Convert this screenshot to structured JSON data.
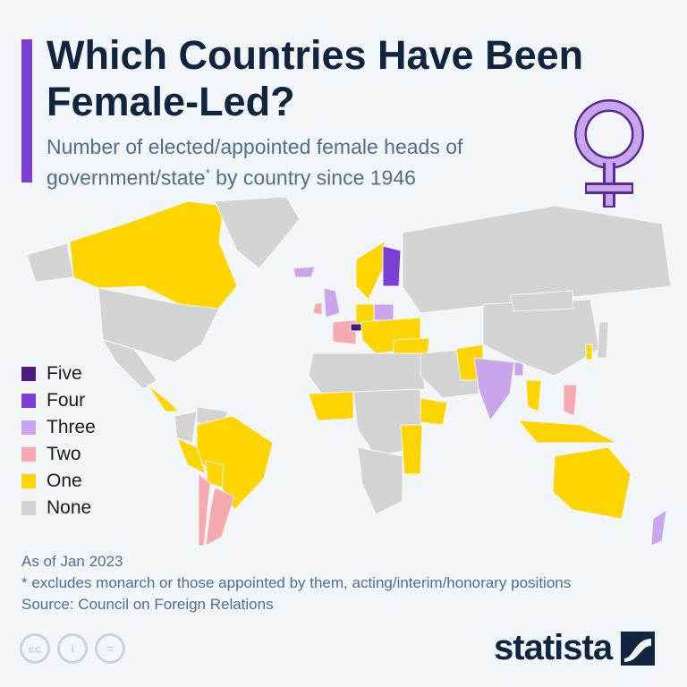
{
  "header": {
    "title": "Which Countries Have Been Female-Led?",
    "subtitle": "Number of elected/appointed female heads of government/state",
    "subtitle_mark": "*",
    "subtitle_end": " by country since 1946"
  },
  "legend": [
    {
      "label": "Five",
      "count": 5,
      "color": "#4b1a7e"
    },
    {
      "label": "Four",
      "count": 4,
      "color": "#7b3fd6"
    },
    {
      "label": "Three",
      "count": 3,
      "color": "#c9a6ec"
    },
    {
      "label": "Two",
      "count": 2,
      "color": "#f6aab0"
    },
    {
      "label": "One",
      "count": 1,
      "color": "#ffd500"
    },
    {
      "label": "None",
      "count": 0,
      "color": "#d3d3d3"
    }
  ],
  "map_regions": {
    "canada": 1,
    "usa": 0,
    "greenland": 0,
    "alaska": 0,
    "mexico": 0,
    "central_america": 1,
    "brazil": 1,
    "argentina": 2,
    "chile": 2,
    "peru": 1,
    "bolivia": 1,
    "colombia": 0,
    "venezuela": 0,
    "iceland": 3,
    "uk": 3,
    "ireland": 2,
    "france": 2,
    "germany": 1,
    "scandinavia": 1,
    "finland": 4,
    "switzerland": 5,
    "poland": 3,
    "eastern_europe": 1,
    "turkey": 1,
    "russia": 0,
    "north_africa": 0,
    "west_africa": 1,
    "central_africa": 0,
    "ethiopia": 1,
    "east_africa": 1,
    "southern_africa": 0,
    "middle_east": 0,
    "pakistan": 1,
    "india": 3,
    "bangladesh": 3,
    "china": 0,
    "mongolia": 0,
    "thailand": 1,
    "indonesia": 1,
    "philippines": 2,
    "australia": 1,
    "new_zealand": 3,
    "japan": 0,
    "korea": 1
  },
  "footer": {
    "as_of": "As of Jan 2023",
    "note": "* excludes monarch or those appointed by them, acting/interim/honorary positions",
    "source": "Source: Council on Foreign Relations",
    "brand": "statista"
  }
}
